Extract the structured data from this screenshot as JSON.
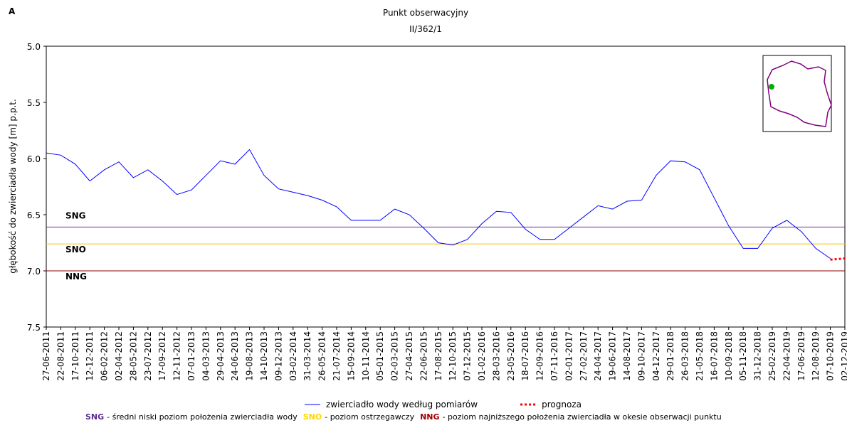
{
  "chart_data": {
    "type": "line",
    "panel_label": "A",
    "title": "Punkt obserwacyjny",
    "subtitle": "II/362/1",
    "y_label": "głębokość do zwierciadła wody [m] p.p.t.",
    "y_inverted": true,
    "ylim": [
      5,
      7.5
    ],
    "yticks": [
      {
        "value": 5,
        "label": "5.0"
      },
      5.5,
      {
        "value": 6,
        "label": "6.0"
      },
      6.5,
      {
        "value": 7,
        "label": "7.0"
      },
      7.5
    ],
    "categories": [
      "27-06-2011",
      "22-08-2011",
      "17-10-2011",
      "12-12-2011",
      "06-02-2012",
      "02-04-2012",
      "28-05-2012",
      "23-07-2012",
      "17-09-2012",
      "12-11-2012",
      "07-01-2013",
      "04-03-2013",
      "29-04-2013",
      "24-06-2013",
      "19-08-2013",
      "14-10-2013",
      "09-12-2013",
      "03-02-2014",
      "31-03-2014",
      "26-05-2014",
      "21-07-2014",
      "15-09-2014",
      "10-11-2014",
      "05-01-2015",
      "02-03-2015",
      "27-04-2015",
      "22-06-2015",
      "17-08-2015",
      "12-10-2015",
      "07-12-2015",
      "01-02-2016",
      "28-03-2016",
      "23-05-2016",
      "18-07-2016",
      "12-09-2016",
      "07-11-2016",
      "02-01-2017",
      "27-02-2017",
      "24-04-2017",
      "19-06-2017",
      "14-08-2017",
      "09-10-2017",
      "04-12-2017",
      "29-01-2018",
      "26-03-2018",
      "21-05-2018",
      "16-07-2018",
      "10-09-2018",
      "05-11-2018",
      "31-12-2018",
      "25-02-2019",
      "22-04-2019",
      "17-06-2019",
      "12-08-2019",
      "07-10-2019",
      "02-12-2019"
    ],
    "series": [
      {
        "name": "zwierciadło wody według pomiarów",
        "color": "#0000ff",
        "style": "solid",
        "values": [
          5.95,
          5.97,
          6.05,
          6.2,
          6.1,
          6.03,
          6.17,
          6.1,
          6.2,
          6.32,
          6.28,
          6.15,
          6.02,
          6.05,
          5.92,
          6.15,
          6.27,
          6.3,
          6.33,
          6.37,
          6.43,
          6.55,
          6.55,
          6.55,
          6.45,
          6.5,
          6.62,
          6.75,
          6.77,
          6.72,
          6.58,
          6.47,
          6.48,
          6.63,
          6.72,
          6.72,
          6.62,
          6.52,
          6.42,
          6.45,
          6.38,
          6.37,
          6.15,
          6.02,
          6.03,
          6.1,
          6.35,
          6.6,
          6.8,
          6.8,
          6.62,
          6.55,
          6.65,
          6.8,
          6.89,
          null
        ]
      },
      {
        "name": "prognoza",
        "color": "#ff0000",
        "style": "dotted",
        "values": [
          null,
          null,
          null,
          null,
          null,
          null,
          null,
          null,
          null,
          null,
          null,
          null,
          null,
          null,
          null,
          null,
          null,
          null,
          null,
          null,
          null,
          null,
          null,
          null,
          null,
          null,
          null,
          null,
          null,
          null,
          null,
          null,
          null,
          null,
          null,
          null,
          null,
          null,
          null,
          null,
          null,
          null,
          null,
          null,
          null,
          null,
          null,
          null,
          null,
          null,
          null,
          null,
          null,
          null,
          6.9,
          6.89
        ]
      }
    ],
    "reference_lines": [
      {
        "name": "SNG",
        "value": 6.61,
        "color": "#7030a0",
        "label_color": "#5b2c8f",
        "description": "- średni niski poziom położenia zwierciadła wody",
        "label_side": "above"
      },
      {
        "name": "SNO",
        "value": 6.76,
        "color": "#ffc000",
        "label_color": "#ffd700",
        "description": "- poziom ostrzegawczy",
        "label_side": "below"
      },
      {
        "name": "NNG",
        "value": 7.0,
        "color": "#8b0000",
        "label_color": "#a00000",
        "description": "- poziom najniższego położenia zwierciadła w okesie obserwacji punktu",
        "label_side": "below"
      }
    ]
  }
}
